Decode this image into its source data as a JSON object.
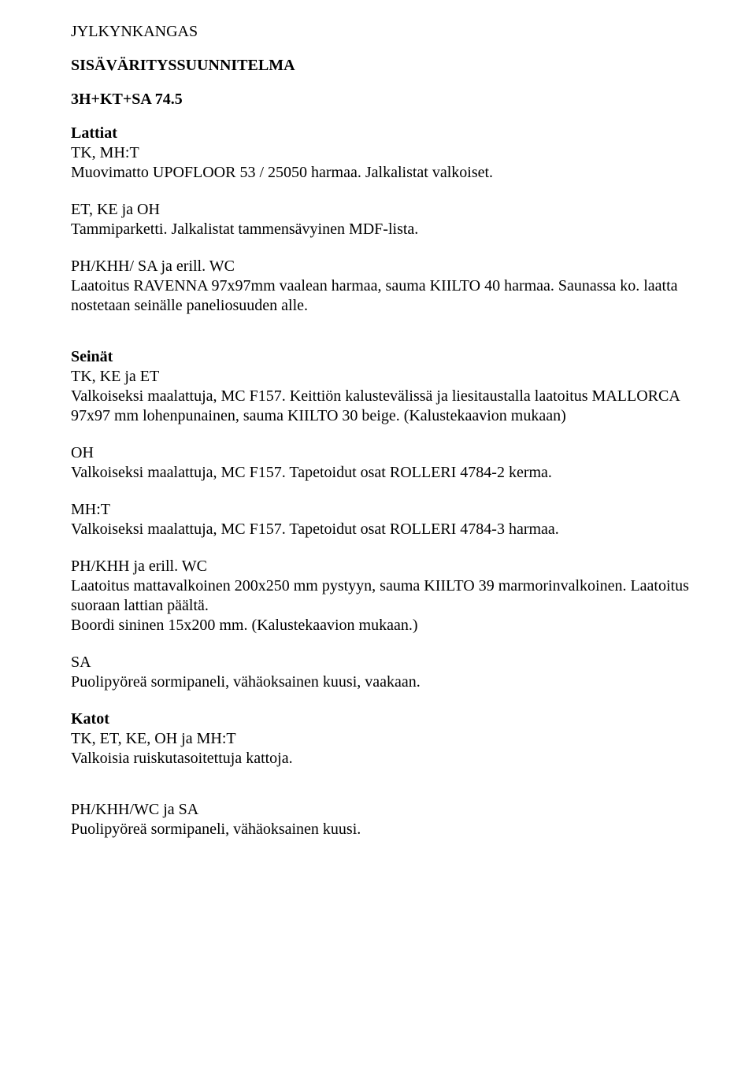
{
  "header": {
    "project": "JYLKYNKANGAS",
    "title": "SISÄVÄRITYSSUUNNITELMA",
    "subtitle": "3H+KT+SA 74.5"
  },
  "lattiat": {
    "heading": "Lattiat",
    "items": [
      {
        "label": "TK, MH:T",
        "text": "Muovimatto UPOFLOOR 53 / 25050 harmaa. Jalkalistat valkoiset."
      },
      {
        "label": "ET, KE ja OH",
        "text": "Tammiparketti. Jalkalistat tammensävyinen MDF-lista."
      },
      {
        "label": "PH/KHH/ SA ja erill. WC",
        "text": "Laatoitus RAVENNA 97x97mm vaalean harmaa, sauma KIILTO 40 harmaa. Saunassa ko. laatta nostetaan seinälle paneliosuuden alle."
      }
    ]
  },
  "seinat": {
    "heading": "Seinät",
    "items": [
      {
        "label": "TK, KE ja ET",
        "text": "Valkoiseksi maalattuja, MC F157. Keittiön kalustevälissä ja liesitaustalla laatoitus MALLORCA  97x97 mm lohenpunainen, sauma KIILTO 30 beige. (Kalustekaavion mukaan)"
      },
      {
        "label": "OH",
        "text": "Valkoiseksi maalattuja, MC F157. Tapetoidut osat ROLLERI 4784-2 kerma."
      },
      {
        "label": "MH:T",
        "text": "Valkoiseksi maalattuja, MC F157. Tapetoidut osat ROLLERI 4784-3 harmaa."
      },
      {
        "label": "PH/KHH ja erill. WC",
        "text": "Laatoitus  mattavalkoinen 200x250 mm pystyyn, sauma KIILTO 39 marmorinvalkoinen. Laatoitus suoraan lattian päältä.",
        "text2": "Boordi sininen 15x200 mm. (Kalustekaavion mukaan.)"
      },
      {
        "label": "SA",
        "text": "Puolipyöreä sormipaneli, vähäoksainen kuusi, vaakaan."
      }
    ]
  },
  "katot": {
    "heading": "Katot",
    "items": [
      {
        "label": "TK, ET, KE, OH ja MH:T",
        "text": "Valkoisia ruiskutasoitettuja kattoja."
      },
      {
        "label": "PH/KHH/WC ja SA",
        "text": "Puolipyöreä sormipaneli, vähäoksainen kuusi."
      }
    ]
  }
}
